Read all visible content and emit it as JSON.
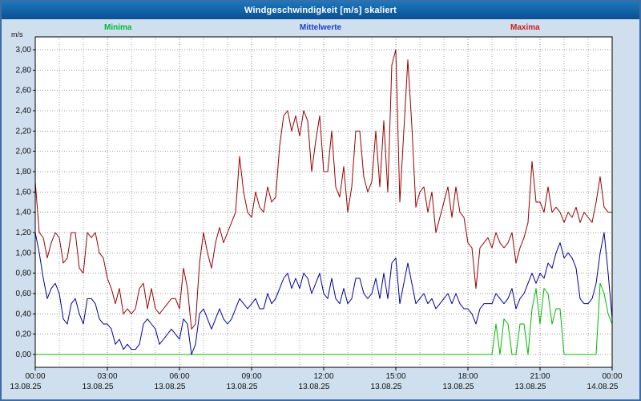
{
  "titlebar": {
    "title": "Windgeschwindigkeit [m/s] skaliert"
  },
  "legend": {
    "minima": "Minima",
    "mittelwerte": "Mittelwerte",
    "maxima": "Maxima"
  },
  "axis": {
    "unit_label": "m/s"
  },
  "colors": {
    "titlebar_bg": "#0f5ca8",
    "frame_bg": "#cfdfee",
    "plot_bg": "#ffffff",
    "grid": "#999999",
    "minima_line": "#00bb00",
    "mittelwerte_line": "#000099",
    "maxima_line": "#990000"
  },
  "chart_data": {
    "type": "line",
    "title": "Windgeschwindigkeit [m/s] skaliert",
    "xlabel": "",
    "ylabel": "m/s",
    "ylim": [
      0,
      3.0
    ],
    "ytick_step": 0.2,
    "grid": true,
    "legend_position": "top",
    "x_unit": "hours",
    "x_range_hours": [
      0,
      24
    ],
    "sample_interval_minutes": 10,
    "ytick_labels": [
      "0,00",
      "0,20",
      "0,40",
      "0,60",
      "0,80",
      "1,00",
      "1,20",
      "1,40",
      "1,60",
      "1,80",
      "2,00",
      "2,20",
      "2,40",
      "2,60",
      "2,80",
      "3,00"
    ],
    "xtick_labels": [
      "00:00",
      "03:00",
      "06:00",
      "09:00",
      "12:00",
      "15:00",
      "18:00",
      "21:00",
      "00:00"
    ],
    "xdate_labels": [
      "13.08.25",
      "13.08.25",
      "13.08.25",
      "13.08.25",
      "13.08.25",
      "13.08.25",
      "13.08.25",
      "13.08.25",
      "14.08.25"
    ],
    "series": [
      {
        "name": "Maxima",
        "color": "#990000",
        "values": [
          1.7,
          1.2,
          1.15,
          0.95,
          1.1,
          1.2,
          1.15,
          0.9,
          0.95,
          1.2,
          1.2,
          0.85,
          0.8,
          1.2,
          1.15,
          1.2,
          1.0,
          0.95,
          0.75,
          0.65,
          0.5,
          0.65,
          0.4,
          0.45,
          0.4,
          0.45,
          0.65,
          0.7,
          0.45,
          0.65,
          0.45,
          0.4,
          0.45,
          0.5,
          0.55,
          0.55,
          0.45,
          0.85,
          0.65,
          0.25,
          0.3,
          0.9,
          1.2,
          1.0,
          0.85,
          1.1,
          1.25,
          1.1,
          1.2,
          1.3,
          1.4,
          1.95,
          1.6,
          1.4,
          1.35,
          1.6,
          1.45,
          1.4,
          1.65,
          1.5,
          1.55,
          2.05,
          2.35,
          2.4,
          2.2,
          2.35,
          2.15,
          2.4,
          2.3,
          1.8,
          2.1,
          2.35,
          1.8,
          1.8,
          2.2,
          1.65,
          1.55,
          1.85,
          1.4,
          1.65,
          2.2,
          2.2,
          1.75,
          1.6,
          1.7,
          2.2,
          1.65,
          2.3,
          1.6,
          2.85,
          3.0,
          1.5,
          2.2,
          2.9,
          2.25,
          1.45,
          1.6,
          1.65,
          1.4,
          1.6,
          1.2,
          1.35,
          1.5,
          1.65,
          1.35,
          1.65,
          1.4,
          1.35,
          1.1,
          1.05,
          0.65,
          1.05,
          1.1,
          1.15,
          1.05,
          1.2,
          1.1,
          1.05,
          1.1,
          1.2,
          0.9,
          1.05,
          1.15,
          1.3,
          1.9,
          1.5,
          1.5,
          1.4,
          1.65,
          1.4,
          1.45,
          1.4,
          1.3,
          1.4,
          1.35,
          1.45,
          1.3,
          1.4,
          1.35,
          1.3,
          1.5,
          1.75,
          1.45,
          1.4,
          1.4
        ]
      },
      {
        "name": "Mittelwerte",
        "color": "#000099",
        "values": [
          1.2,
          1.0,
          0.75,
          0.55,
          0.65,
          0.7,
          0.6,
          0.35,
          0.3,
          0.5,
          0.55,
          0.4,
          0.3,
          0.55,
          0.55,
          0.5,
          0.35,
          0.3,
          0.3,
          0.25,
          0.1,
          0.15,
          0.05,
          0.1,
          0.05,
          0.05,
          0.1,
          0.3,
          0.35,
          0.3,
          0.25,
          0.1,
          0.15,
          0.2,
          0.25,
          0.2,
          0.15,
          0.35,
          0.3,
          0.0,
          0.1,
          0.4,
          0.45,
          0.35,
          0.25,
          0.35,
          0.45,
          0.35,
          0.3,
          0.35,
          0.45,
          0.55,
          0.5,
          0.45,
          0.5,
          0.55,
          0.45,
          0.45,
          0.6,
          0.5,
          0.55,
          0.65,
          0.75,
          0.8,
          0.65,
          0.75,
          0.65,
          0.8,
          0.75,
          0.6,
          0.7,
          0.8,
          0.6,
          0.55,
          0.75,
          0.55,
          0.5,
          0.65,
          0.5,
          0.55,
          0.75,
          0.75,
          0.6,
          0.55,
          0.6,
          0.75,
          0.55,
          0.8,
          0.55,
          0.9,
          0.95,
          0.5,
          0.7,
          0.9,
          0.7,
          0.5,
          0.55,
          0.6,
          0.5,
          0.55,
          0.45,
          0.5,
          0.55,
          0.6,
          0.5,
          0.6,
          0.5,
          0.45,
          0.45,
          0.4,
          0.3,
          0.45,
          0.5,
          0.5,
          0.5,
          0.6,
          0.55,
          0.5,
          0.55,
          0.65,
          0.45,
          0.55,
          0.6,
          0.7,
          0.8,
          0.7,
          0.8,
          0.75,
          0.9,
          0.85,
          1.0,
          1.1,
          0.95,
          1.0,
          0.95,
          0.85,
          0.55,
          0.5,
          0.5,
          0.55,
          0.7,
          1.0,
          1.2,
          0.8,
          0.35
        ]
      },
      {
        "name": "Minima",
        "color": "#00bb00",
        "values": [
          0,
          0,
          0,
          0,
          0,
          0,
          0,
          0,
          0,
          0,
          0,
          0,
          0,
          0,
          0,
          0,
          0,
          0,
          0,
          0,
          0,
          0,
          0,
          0,
          0,
          0,
          0,
          0,
          0,
          0,
          0,
          0,
          0,
          0,
          0,
          0,
          0,
          0,
          0,
          0,
          0,
          0,
          0,
          0,
          0,
          0,
          0,
          0,
          0,
          0,
          0,
          0,
          0,
          0,
          0,
          0,
          0,
          0,
          0,
          0,
          0,
          0,
          0,
          0,
          0,
          0,
          0,
          0,
          0,
          0,
          0,
          0,
          0,
          0,
          0,
          0,
          0,
          0,
          0,
          0,
          0,
          0,
          0,
          0,
          0,
          0,
          0,
          0,
          0,
          0,
          0,
          0,
          0,
          0,
          0,
          0,
          0,
          0,
          0,
          0,
          0,
          0,
          0,
          0,
          0,
          0,
          0,
          0,
          0,
          0,
          0,
          0,
          0,
          0,
          0,
          0.3,
          0,
          0.35,
          0.3,
          0,
          0,
          0.3,
          0.3,
          0,
          0.45,
          0.65,
          0.3,
          0.65,
          0.6,
          0.3,
          0.45,
          0.45,
          0,
          0,
          0,
          0,
          0,
          0,
          0,
          0,
          0,
          0.7,
          0.6,
          0.4,
          0.3
        ]
      }
    ]
  }
}
